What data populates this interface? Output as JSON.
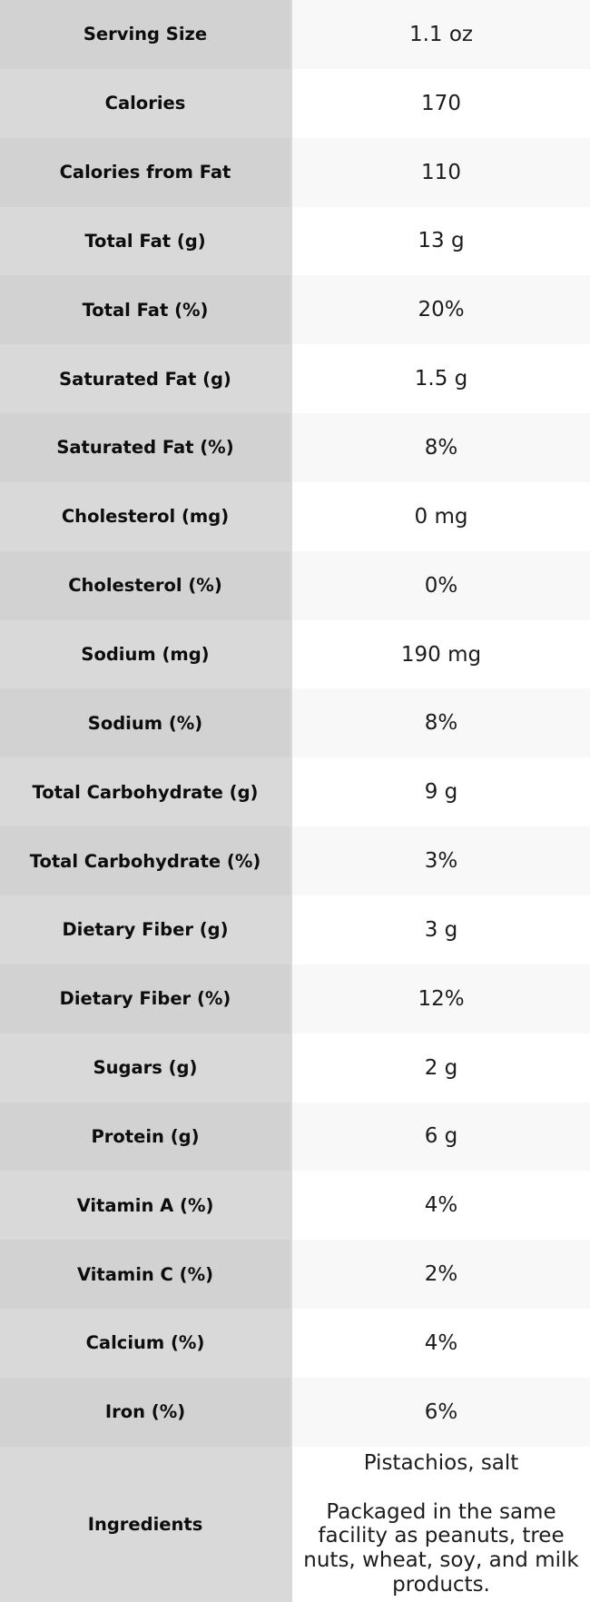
{
  "chart_data": {
    "type": "table",
    "rows": [
      {
        "label": "Serving Size",
        "value": "1.1 oz"
      },
      {
        "label": "Calories",
        "value": "170"
      },
      {
        "label": "Calories from Fat",
        "value": "110"
      },
      {
        "label": "Total Fat (g)",
        "value": "13 g"
      },
      {
        "label": "Total Fat (%)",
        "value": "20%"
      },
      {
        "label": "Saturated Fat (g)",
        "value": "1.5 g"
      },
      {
        "label": "Saturated Fat (%)",
        "value": "8%"
      },
      {
        "label": "Cholesterol (mg)",
        "value": "0 mg"
      },
      {
        "label": "Cholesterol (%)",
        "value": "0%"
      },
      {
        "label": "Sodium (mg)",
        "value": "190 mg"
      },
      {
        "label": "Sodium (%)",
        "value": "8%"
      },
      {
        "label": "Total Carbohydrate (g)",
        "value": "9 g"
      },
      {
        "label": "Total Carbohydrate (%)",
        "value": "3%"
      },
      {
        "label": "Dietary Fiber (g)",
        "value": "3 g"
      },
      {
        "label": "Dietary Fiber (%)",
        "value": "12%"
      },
      {
        "label": "Sugars (g)",
        "value": "2 g"
      },
      {
        "label": "Protein (g)",
        "value": "6 g"
      },
      {
        "label": "Vitamin A (%)",
        "value": "4%"
      },
      {
        "label": "Vitamin C (%)",
        "value": "2%"
      },
      {
        "label": "Calcium (%)",
        "value": "4%"
      },
      {
        "label": "Iron (%)",
        "value": "6%"
      },
      {
        "label": "Ingredients",
        "value": "Pistachios, salt",
        "value2": "Packaged in the same facility as peanuts, tree nuts, wheat, soy, and milk products."
      }
    ],
    "layout": {
      "has_header_row": false,
      "label_column_align": "center",
      "value_column_align": "center"
    },
    "colors": {
      "label_bg_odd": "#d2d2d2",
      "label_bg_even": "#d9d9d9",
      "value_bg_odd": "#f8f8f8",
      "value_bg_even": "#ffffff",
      "text": "#111111"
    }
  }
}
